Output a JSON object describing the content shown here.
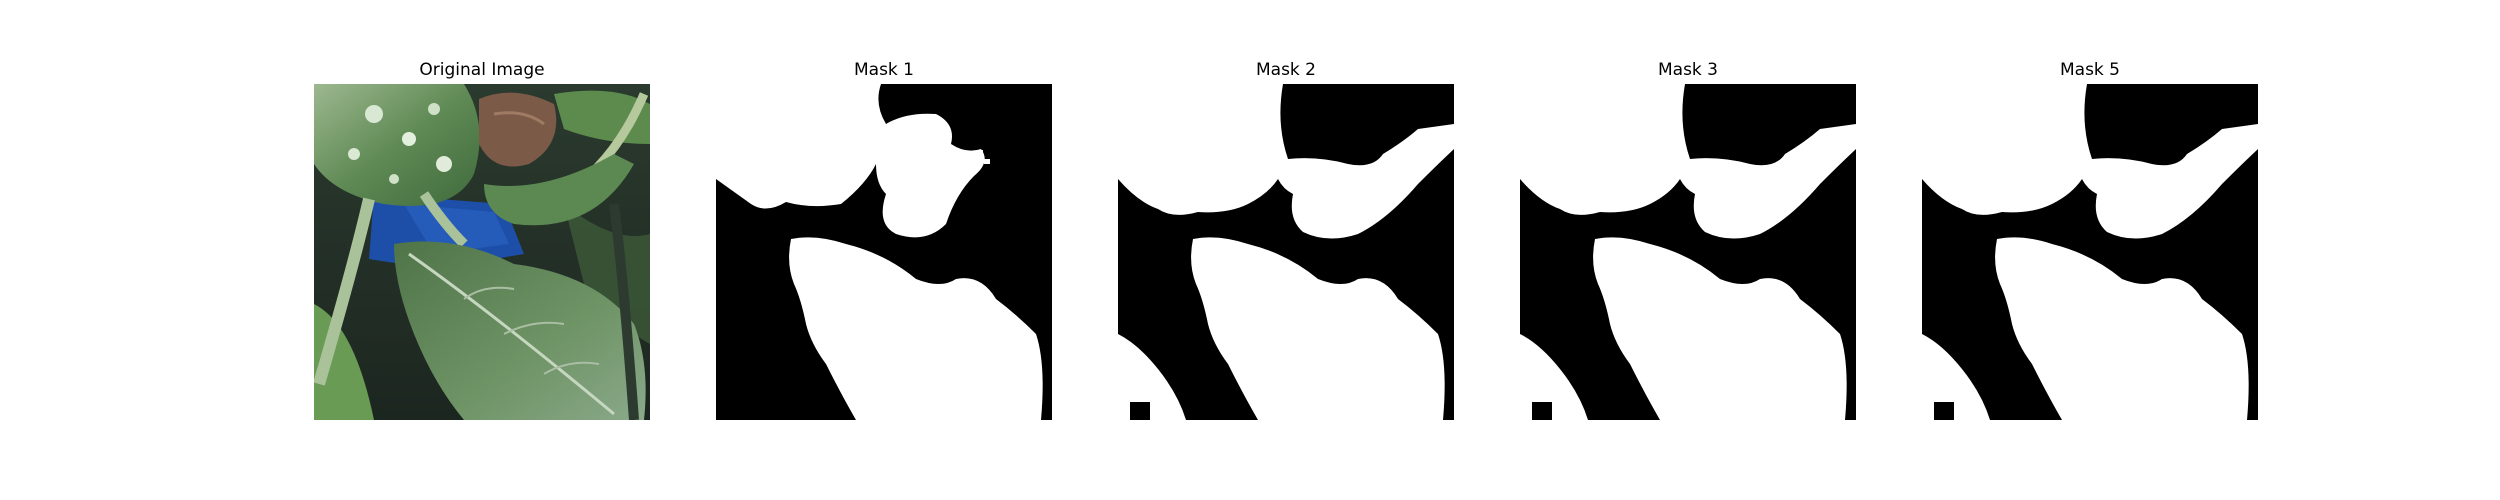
{
  "figure": {
    "panels": [
      {
        "title": "Original Image",
        "kind": "photo",
        "description_icon": "leaf-photo"
      },
      {
        "title": "Mask 1",
        "kind": "mask"
      },
      {
        "title": "Mask 2",
        "kind": "mask"
      },
      {
        "title": "Mask 3",
        "kind": "mask"
      },
      {
        "title": "Mask 5",
        "kind": "mask"
      }
    ]
  },
  "colors": {
    "mask_foreground": "#ffffff",
    "mask_background": "#000000"
  }
}
